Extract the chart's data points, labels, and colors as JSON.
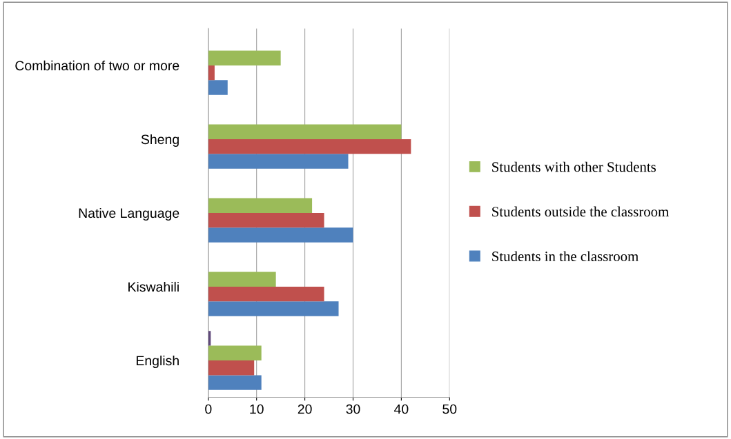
{
  "chart_data": {
    "type": "bar",
    "orientation": "horizontal",
    "categories": [
      "Combination of two or more",
      "Sheng",
      "Native Language",
      "Kiswahili",
      "English"
    ],
    "series": [
      {
        "name": "Students in the classroom",
        "color": "#4f81bd",
        "values": [
          4,
          29,
          30,
          27,
          11
        ]
      },
      {
        "name": "Students outside the classroom",
        "color": "#c0504d",
        "values": [
          1.3,
          42,
          24,
          24,
          9.5
        ]
      },
      {
        "name": "Students with other Students",
        "color": "#9bbb59",
        "values": [
          15,
          40,
          21.5,
          14,
          11
        ]
      },
      {
        "color": "#604a7b",
        "values": [
          null,
          null,
          null,
          null,
          0.5
        ]
      }
    ],
    "xlim": [
      0,
      50
    ],
    "xticks": [
      0,
      10,
      20,
      30,
      40,
      50
    ],
    "grid": "x",
    "legend": "right"
  }
}
